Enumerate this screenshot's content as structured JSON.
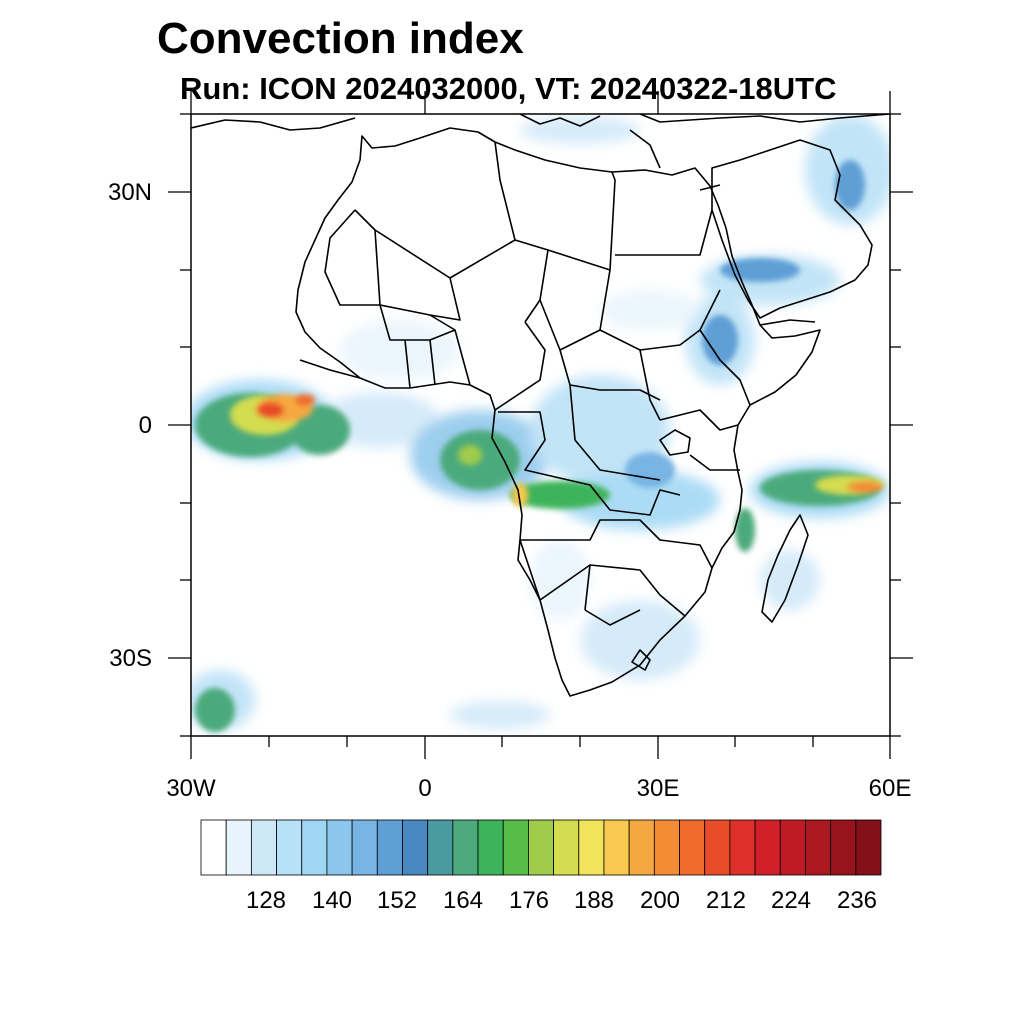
{
  "title": "Convection index",
  "subtitle": "Run: ICON 2024032000,  VT: 20240322-18UTC",
  "axes": {
    "lat_labels": [
      "30N",
      "0",
      "30S"
    ],
    "lon_labels": [
      "30W",
      "0",
      "30E",
      "60E"
    ]
  },
  "colorbar": {
    "labels": [
      "128",
      "140",
      "152",
      "164",
      "176",
      "188",
      "200",
      "212",
      "224",
      "236"
    ],
    "colors": [
      "#ffffff",
      "#e8f4fc",
      "#cfe8f8",
      "#b8e0f6",
      "#9ed6f4",
      "#8cc6ec",
      "#78b4e4",
      "#5e9fd6",
      "#4a88c2",
      "#4a9aa2",
      "#4caa7c",
      "#3db45a",
      "#58bc48",
      "#a0cc4c",
      "#d4dc50",
      "#f2e45a",
      "#f8c850",
      "#f6a840",
      "#f48c36",
      "#f06c2c",
      "#e84c28",
      "#dc3028",
      "#d02028",
      "#c01a24",
      "#ac1820",
      "#98141c",
      "#84101a"
    ]
  },
  "chart_data": {
    "type": "heatmap",
    "title": "Convection index",
    "subtitle": "Run: ICON 2024032000,  VT: 20240322-18UTC",
    "x_range": [
      -30,
      60
    ],
    "y_range": [
      -40,
      40
    ],
    "x_ticks": [
      "30W",
      "0",
      "30E",
      "60E"
    ],
    "y_ticks": [
      "30N",
      "0",
      "30S"
    ],
    "colorbar_levels": [
      128,
      140,
      152,
      164,
      176,
      188,
      200,
      212,
      224,
      236
    ]
  }
}
